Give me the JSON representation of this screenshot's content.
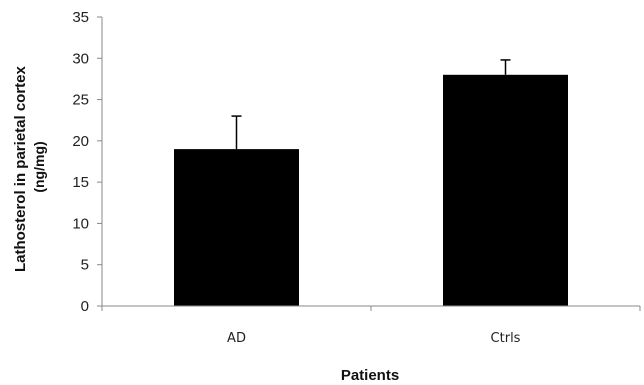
{
  "chart_data": {
    "type": "bar",
    "categories": [
      "AD",
      "Ctrls"
    ],
    "values": [
      19,
      28
    ],
    "errors": [
      4,
      1.8
    ],
    "xlabel": "Patients",
    "ylabel_line1": "Lathosterol in parietal cortex",
    "ylabel_line2": "(ng/mg)",
    "ylim": [
      0,
      35
    ],
    "yticks": [
      0,
      5,
      10,
      15,
      20,
      25,
      30,
      35
    ],
    "grid": false,
    "bar_color": "#000000"
  }
}
